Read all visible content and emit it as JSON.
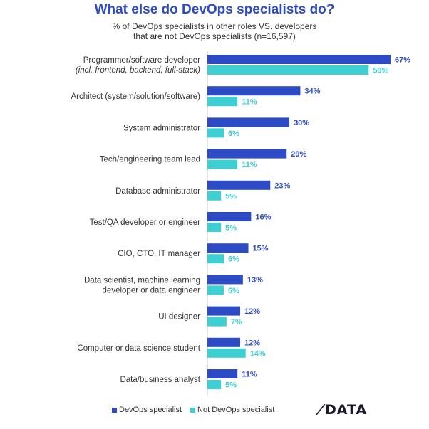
{
  "colors": {
    "devops": "#2E4BC6",
    "not_devops": "#3ECFD3",
    "axis": "#c7c7c7",
    "label": "#333333"
  },
  "chart_data": {
    "type": "bar",
    "orientation": "horizontal",
    "title": "What else do DevOps specialists do?",
    "subtitle": [
      "% of DevOps specialists in other roles VS. developers",
      "that are not DevOps specialists (n=16,597)"
    ],
    "categories": [
      [
        "Programmer/software developer",
        "(incl. frontend, backend, full-stack)"
      ],
      [
        "Architect (system/solution/software)"
      ],
      [
        "System administrator"
      ],
      [
        "Tech/engineering team lead"
      ],
      [
        "Database administrator"
      ],
      [
        "Test/QA developer or engineer"
      ],
      [
        "CIO, CTO, IT manager"
      ],
      [
        "Data scientist, machine learning",
        "developer or data engineer"
      ],
      [
        "UI designer"
      ],
      [
        "Computer or data science student"
      ],
      [
        "Data/business analyst"
      ]
    ],
    "series": [
      {
        "name": "DevOps specialist",
        "values": [
          67,
          34,
          30,
          29,
          23,
          16,
          15,
          13,
          12,
          12,
          11
        ],
        "labels": [
          "67%",
          "34%",
          "30%",
          "29%",
          "23%",
          "16%",
          "15%",
          "13%",
          "12%",
          "12%",
          "11%"
        ]
      },
      {
        "name": "Not DevOps specialist",
        "values": [
          59,
          11,
          6,
          11,
          5,
          5,
          6,
          6,
          7,
          14,
          5
        ],
        "labels": [
          "59%",
          "11%",
          "6%",
          "11%",
          "5%",
          "5%",
          "6%",
          "6%",
          "7%",
          "14%",
          "5%"
        ]
      }
    ],
    "xlim": [
      0,
      67
    ],
    "legend": "bottom-left"
  },
  "logo": {
    "text": "DATA",
    "prefix": "/"
  }
}
